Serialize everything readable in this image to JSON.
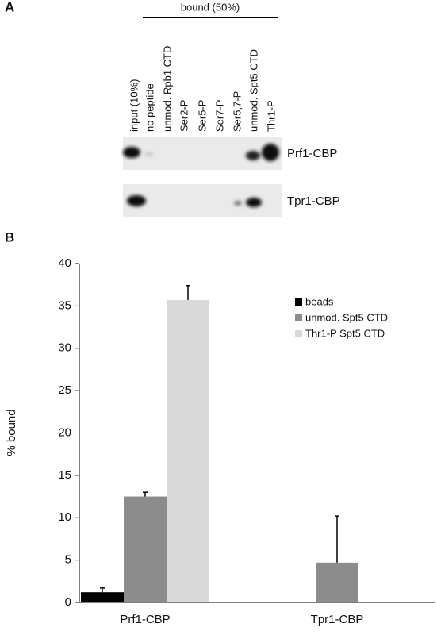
{
  "panel_a": {
    "label": "A",
    "header": "bound (50%)",
    "lanes": [
      "input (10%)",
      "no peptide",
      "unmod. Rpb1 CTD",
      "Ser2-P",
      "Ser5-P",
      "Ser7-P",
      "Ser5,7-P",
      "unmod. Spt5 CTD",
      "Thr1-P"
    ],
    "blots": [
      "Prf1-CBP",
      "Tpr1-CBP"
    ]
  },
  "panel_b": {
    "label": "B"
  },
  "chart_data": {
    "type": "bar",
    "y_label": "% bound",
    "categories": [
      "Prf1-CBP",
      "Tpr1-CBP"
    ],
    "series": [
      {
        "name": "beads",
        "color": "#000000",
        "values": [
          1.2,
          0
        ],
        "errors": [
          0.5,
          null
        ]
      },
      {
        "name": "unmod. Spt5 CTD",
        "color": "#8c8c8c",
        "values": [
          12.5,
          4.7
        ],
        "errors": [
          0.5,
          5.5
        ]
      },
      {
        "name": "Thr1-P Spt5 CTD",
        "color": "#d9d9d9",
        "values": [
          35.7,
          0
        ],
        "errors": [
          1.7,
          null
        ]
      }
    ],
    "ylim": [
      0,
      40
    ],
    "yticks": [
      0,
      5,
      10,
      15,
      20,
      25,
      30,
      35,
      40
    ],
    "legend": "top-right"
  }
}
